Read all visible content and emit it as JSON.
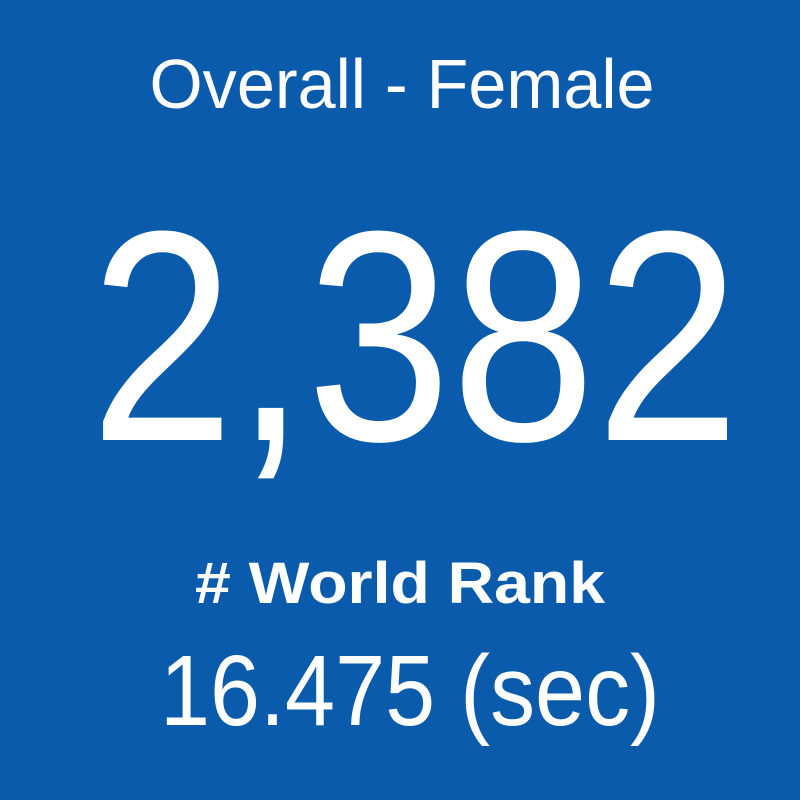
{
  "tile": {
    "title": "Overall - Female",
    "rank": "2,382",
    "rank_label": "# World Rank",
    "time": "16.475 (sec)"
  }
}
